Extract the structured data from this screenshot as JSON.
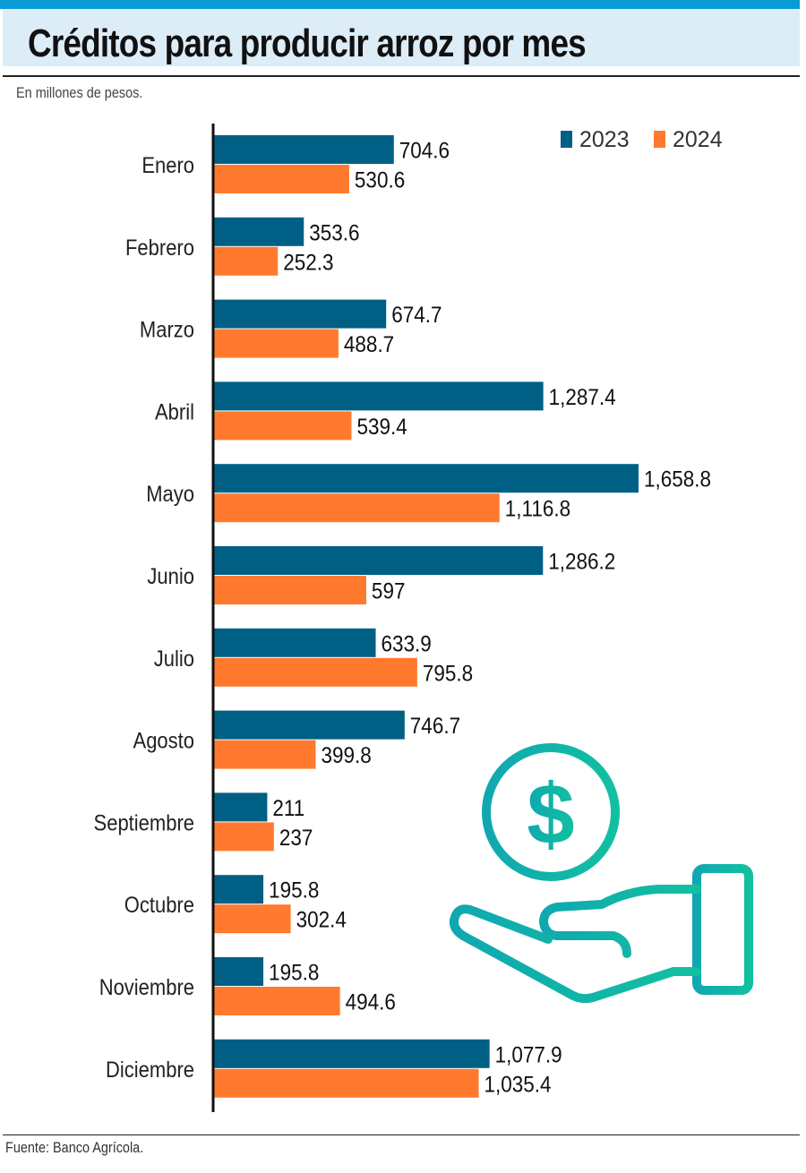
{
  "title": "Créditos para producir arroz por mes",
  "subtitle": "En millones de pesos.",
  "source": "Fuente: Banco Agrícola.",
  "icon": "hand-holding-dollar-icon",
  "chart_data": {
    "type": "bar",
    "orientation": "horizontal",
    "title": "Créditos para producir arroz por mes",
    "subtitle": "En millones de pesos.",
    "xlabel": "",
    "ylabel": "",
    "xlim": [
      0,
      1700
    ],
    "grid": false,
    "legend_position": "top-right",
    "categories": [
      "Enero",
      "Febrero",
      "Marzo",
      "Abril",
      "Mayo",
      "Junio",
      "Julio",
      "Agosto",
      "Septiembre",
      "Octubre",
      "Noviembre",
      "Diciembre"
    ],
    "series": [
      {
        "name": "2023",
        "color": "#005f85",
        "values": [
          704.6,
          353.6,
          674.7,
          1287.4,
          1658.8,
          1286.2,
          633.9,
          746.7,
          211,
          195.8,
          195.8,
          1077.9
        ],
        "labels": [
          "704.6",
          "353.6",
          "674.7",
          "1,287.4",
          "1,658.8",
          "1,286.2",
          "633.9",
          "746.7",
          "211",
          "195.8",
          "195.8",
          "1,077.9"
        ]
      },
      {
        "name": "2024",
        "color": "#ff7a2f",
        "values": [
          530.6,
          252.3,
          488.7,
          539.4,
          1116.8,
          597,
          795.8,
          399.8,
          237,
          302.4,
          494.6,
          1035.4
        ],
        "labels": [
          "530.6",
          "252.3",
          "488.7",
          "539.4",
          "1,116.8",
          "597",
          "795.8",
          "399.8",
          "237",
          "302.4",
          "494.6",
          "1,035.4"
        ]
      }
    ]
  }
}
